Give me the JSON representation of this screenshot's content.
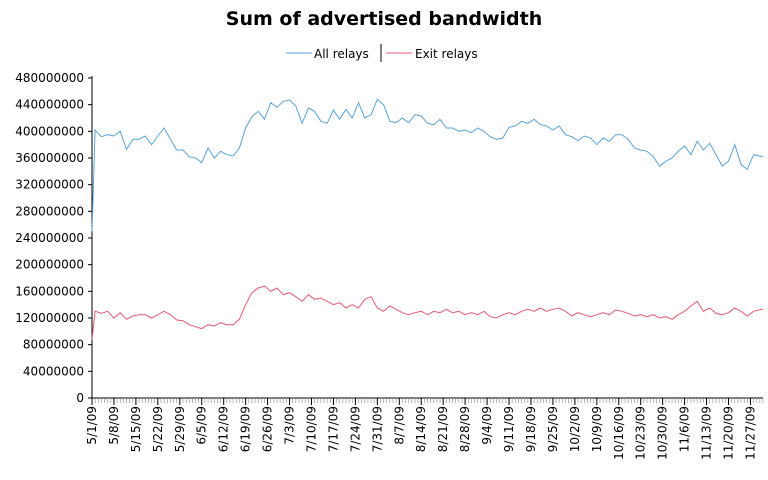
{
  "chart_data": {
    "type": "line",
    "title": "Sum of advertised bandwidth",
    "xlabel": "",
    "ylabel": "",
    "ylim": [
      0,
      480000000
    ],
    "y_ticks": [
      0,
      40000000,
      80000000,
      120000000,
      160000000,
      200000000,
      240000000,
      280000000,
      320000000,
      360000000,
      400000000,
      440000000,
      480000000
    ],
    "x_tick_labels": [
      "5/1/09",
      "5/8/09",
      "5/15/09",
      "5/22/09",
      "5/29/09",
      "6/5/09",
      "6/12/09",
      "6/19/09",
      "6/26/09",
      "7/3/09",
      "7/10/09",
      "7/17/09",
      "7/24/09",
      "7/31/09",
      "8/7/09",
      "8/14/09",
      "8/21/09",
      "8/28/09",
      "9/4/09",
      "9/11/09",
      "9/18/09",
      "9/25/09",
      "10/2/09",
      "10/9/09",
      "10/16/09",
      "10/23/09",
      "10/30/09",
      "11/6/09",
      "11/13/09",
      "11/20/09",
      "11/27/09"
    ],
    "x_start": "2009-05-01",
    "x_end": "2009-12-01",
    "legend_position": "top-center",
    "grid": false,
    "series": [
      {
        "name": "All relays",
        "color": "#5ba3d8",
        "points": [
          [
            "2009-05-01",
            250000000
          ],
          [
            "2009-05-02",
            402000000
          ],
          [
            "2009-05-04",
            392000000
          ],
          [
            "2009-05-06",
            395000000
          ],
          [
            "2009-05-08",
            393000000
          ],
          [
            "2009-05-10",
            400000000
          ],
          [
            "2009-05-12",
            373000000
          ],
          [
            "2009-05-14",
            388000000
          ],
          [
            "2009-05-16",
            388000000
          ],
          [
            "2009-05-18",
            393000000
          ],
          [
            "2009-05-20",
            380000000
          ],
          [
            "2009-05-22",
            393000000
          ],
          [
            "2009-05-24",
            405000000
          ],
          [
            "2009-05-26",
            388000000
          ],
          [
            "2009-05-28",
            372000000
          ],
          [
            "2009-05-30",
            372000000
          ],
          [
            "2009-06-01",
            362000000
          ],
          [
            "2009-06-03",
            360000000
          ],
          [
            "2009-06-05",
            353000000
          ],
          [
            "2009-06-07",
            375000000
          ],
          [
            "2009-06-09",
            360000000
          ],
          [
            "2009-06-11",
            370000000
          ],
          [
            "2009-06-13",
            365000000
          ],
          [
            "2009-06-15",
            363000000
          ],
          [
            "2009-06-17",
            375000000
          ],
          [
            "2009-06-19",
            405000000
          ],
          [
            "2009-06-21",
            422000000
          ],
          [
            "2009-06-23",
            430000000
          ],
          [
            "2009-06-25",
            418000000
          ],
          [
            "2009-06-27",
            443000000
          ],
          [
            "2009-06-29",
            436000000
          ],
          [
            "2009-07-01",
            445000000
          ],
          [
            "2009-07-03",
            447000000
          ],
          [
            "2009-07-05",
            438000000
          ],
          [
            "2009-07-07",
            412000000
          ],
          [
            "2009-07-09",
            435000000
          ],
          [
            "2009-07-11",
            430000000
          ],
          [
            "2009-07-13",
            415000000
          ],
          [
            "2009-07-15",
            412000000
          ],
          [
            "2009-07-17",
            432000000
          ],
          [
            "2009-07-19",
            418000000
          ],
          [
            "2009-07-21",
            433000000
          ],
          [
            "2009-07-23",
            420000000
          ],
          [
            "2009-07-25",
            443000000
          ],
          [
            "2009-07-27",
            420000000
          ],
          [
            "2009-07-29",
            425000000
          ],
          [
            "2009-07-31",
            448000000
          ],
          [
            "2009-08-02",
            440000000
          ],
          [
            "2009-08-04",
            415000000
          ],
          [
            "2009-08-06",
            413000000
          ],
          [
            "2009-08-08",
            420000000
          ],
          [
            "2009-08-10",
            413000000
          ],
          [
            "2009-08-12",
            425000000
          ],
          [
            "2009-08-14",
            423000000
          ],
          [
            "2009-08-16",
            412000000
          ],
          [
            "2009-08-18",
            410000000
          ],
          [
            "2009-08-20",
            418000000
          ],
          [
            "2009-08-22",
            405000000
          ],
          [
            "2009-08-24",
            405000000
          ],
          [
            "2009-08-26",
            400000000
          ],
          [
            "2009-08-28",
            402000000
          ],
          [
            "2009-08-30",
            398000000
          ],
          [
            "2009-09-01",
            405000000
          ],
          [
            "2009-09-03",
            400000000
          ],
          [
            "2009-09-05",
            392000000
          ],
          [
            "2009-09-07",
            388000000
          ],
          [
            "2009-09-09",
            390000000
          ],
          [
            "2009-09-11",
            406000000
          ],
          [
            "2009-09-13",
            408000000
          ],
          [
            "2009-09-15",
            415000000
          ],
          [
            "2009-09-17",
            412000000
          ],
          [
            "2009-09-19",
            418000000
          ],
          [
            "2009-09-21",
            410000000
          ],
          [
            "2009-09-23",
            408000000
          ],
          [
            "2009-09-25",
            402000000
          ],
          [
            "2009-09-27",
            408000000
          ],
          [
            "2009-09-29",
            395000000
          ],
          [
            "2009-10-01",
            392000000
          ],
          [
            "2009-10-03",
            386000000
          ],
          [
            "2009-10-05",
            393000000
          ],
          [
            "2009-10-07",
            390000000
          ],
          [
            "2009-10-09",
            380000000
          ],
          [
            "2009-10-11",
            390000000
          ],
          [
            "2009-10-13",
            385000000
          ],
          [
            "2009-10-15",
            395000000
          ],
          [
            "2009-10-17",
            395000000
          ],
          [
            "2009-10-19",
            388000000
          ],
          [
            "2009-10-21",
            375000000
          ],
          [
            "2009-10-23",
            372000000
          ],
          [
            "2009-10-25",
            370000000
          ],
          [
            "2009-10-27",
            362000000
          ],
          [
            "2009-10-29",
            348000000
          ],
          [
            "2009-10-31",
            355000000
          ],
          [
            "2009-11-02",
            360000000
          ],
          [
            "2009-11-04",
            370000000
          ],
          [
            "2009-11-06",
            378000000
          ],
          [
            "2009-11-08",
            365000000
          ],
          [
            "2009-11-10",
            385000000
          ],
          [
            "2009-11-12",
            372000000
          ],
          [
            "2009-11-14",
            382000000
          ],
          [
            "2009-11-16",
            365000000
          ],
          [
            "2009-11-18",
            348000000
          ],
          [
            "2009-11-20",
            355000000
          ],
          [
            "2009-11-22",
            380000000
          ],
          [
            "2009-11-24",
            350000000
          ],
          [
            "2009-11-26",
            343000000
          ],
          [
            "2009-11-28",
            365000000
          ],
          [
            "2009-12-01",
            362000000
          ]
        ]
      },
      {
        "name": "Exit relays",
        "color": "#e35b74",
        "points": [
          [
            "2009-05-01",
            88000000
          ],
          [
            "2009-05-02",
            130000000
          ],
          [
            "2009-05-04",
            127000000
          ],
          [
            "2009-05-06",
            130000000
          ],
          [
            "2009-05-08",
            120000000
          ],
          [
            "2009-05-10",
            128000000
          ],
          [
            "2009-05-12",
            118000000
          ],
          [
            "2009-05-14",
            123000000
          ],
          [
            "2009-05-16",
            125000000
          ],
          [
            "2009-05-18",
            125000000
          ],
          [
            "2009-05-20",
            120000000
          ],
          [
            "2009-05-22",
            125000000
          ],
          [
            "2009-05-24",
            130000000
          ],
          [
            "2009-05-26",
            125000000
          ],
          [
            "2009-05-28",
            117000000
          ],
          [
            "2009-05-30",
            116000000
          ],
          [
            "2009-06-01",
            110000000
          ],
          [
            "2009-06-03",
            107000000
          ],
          [
            "2009-06-05",
            104000000
          ],
          [
            "2009-06-07",
            110000000
          ],
          [
            "2009-06-09",
            108000000
          ],
          [
            "2009-06-11",
            113000000
          ],
          [
            "2009-06-13",
            110000000
          ],
          [
            "2009-06-15",
            110000000
          ],
          [
            "2009-06-17",
            118000000
          ],
          [
            "2009-06-19",
            140000000
          ],
          [
            "2009-06-21",
            158000000
          ],
          [
            "2009-06-23",
            165000000
          ],
          [
            "2009-06-25",
            168000000
          ],
          [
            "2009-06-27",
            160000000
          ],
          [
            "2009-06-29",
            165000000
          ],
          [
            "2009-07-01",
            155000000
          ],
          [
            "2009-07-03",
            158000000
          ],
          [
            "2009-07-05",
            152000000
          ],
          [
            "2009-07-07",
            145000000
          ],
          [
            "2009-07-09",
            155000000
          ],
          [
            "2009-07-11",
            148000000
          ],
          [
            "2009-07-13",
            150000000
          ],
          [
            "2009-07-15",
            145000000
          ],
          [
            "2009-07-17",
            140000000
          ],
          [
            "2009-07-19",
            143000000
          ],
          [
            "2009-07-21",
            135000000
          ],
          [
            "2009-07-23",
            140000000
          ],
          [
            "2009-07-25",
            135000000
          ],
          [
            "2009-07-27",
            148000000
          ],
          [
            "2009-07-29",
            152000000
          ],
          [
            "2009-07-31",
            135000000
          ],
          [
            "2009-08-02",
            130000000
          ],
          [
            "2009-08-04",
            138000000
          ],
          [
            "2009-08-06",
            133000000
          ],
          [
            "2009-08-08",
            128000000
          ],
          [
            "2009-08-10",
            125000000
          ],
          [
            "2009-08-12",
            128000000
          ],
          [
            "2009-08-14",
            130000000
          ],
          [
            "2009-08-16",
            125000000
          ],
          [
            "2009-08-18",
            130000000
          ],
          [
            "2009-08-20",
            128000000
          ],
          [
            "2009-08-22",
            133000000
          ],
          [
            "2009-08-24",
            128000000
          ],
          [
            "2009-08-26",
            130000000
          ],
          [
            "2009-08-28",
            125000000
          ],
          [
            "2009-08-30",
            128000000
          ],
          [
            "2009-09-01",
            125000000
          ],
          [
            "2009-09-03",
            130000000
          ],
          [
            "2009-09-05",
            122000000
          ],
          [
            "2009-09-07",
            120000000
          ],
          [
            "2009-09-09",
            125000000
          ],
          [
            "2009-09-11",
            128000000
          ],
          [
            "2009-09-13",
            125000000
          ],
          [
            "2009-09-15",
            130000000
          ],
          [
            "2009-09-17",
            133000000
          ],
          [
            "2009-09-19",
            130000000
          ],
          [
            "2009-09-21",
            135000000
          ],
          [
            "2009-09-23",
            130000000
          ],
          [
            "2009-09-25",
            133000000
          ],
          [
            "2009-09-27",
            135000000
          ],
          [
            "2009-09-29",
            130000000
          ],
          [
            "2009-10-01",
            123000000
          ],
          [
            "2009-10-03",
            128000000
          ],
          [
            "2009-10-05",
            125000000
          ],
          [
            "2009-10-07",
            122000000
          ],
          [
            "2009-10-09",
            125000000
          ],
          [
            "2009-10-11",
            128000000
          ],
          [
            "2009-10-13",
            125000000
          ],
          [
            "2009-10-15",
            132000000
          ],
          [
            "2009-10-17",
            130000000
          ],
          [
            "2009-10-19",
            127000000
          ],
          [
            "2009-10-21",
            123000000
          ],
          [
            "2009-10-23",
            125000000
          ],
          [
            "2009-10-25",
            122000000
          ],
          [
            "2009-10-27",
            125000000
          ],
          [
            "2009-10-29",
            120000000
          ],
          [
            "2009-10-31",
            122000000
          ],
          [
            "2009-11-02",
            118000000
          ],
          [
            "2009-11-04",
            125000000
          ],
          [
            "2009-11-06",
            130000000
          ],
          [
            "2009-11-08",
            138000000
          ],
          [
            "2009-11-10",
            145000000
          ],
          [
            "2009-11-12",
            130000000
          ],
          [
            "2009-11-14",
            135000000
          ],
          [
            "2009-11-16",
            127000000
          ],
          [
            "2009-11-18",
            125000000
          ],
          [
            "2009-11-20",
            128000000
          ],
          [
            "2009-11-22",
            135000000
          ],
          [
            "2009-11-24",
            130000000
          ],
          [
            "2009-11-26",
            123000000
          ],
          [
            "2009-11-28",
            130000000
          ],
          [
            "2009-12-01",
            133000000
          ]
        ]
      }
    ]
  }
}
